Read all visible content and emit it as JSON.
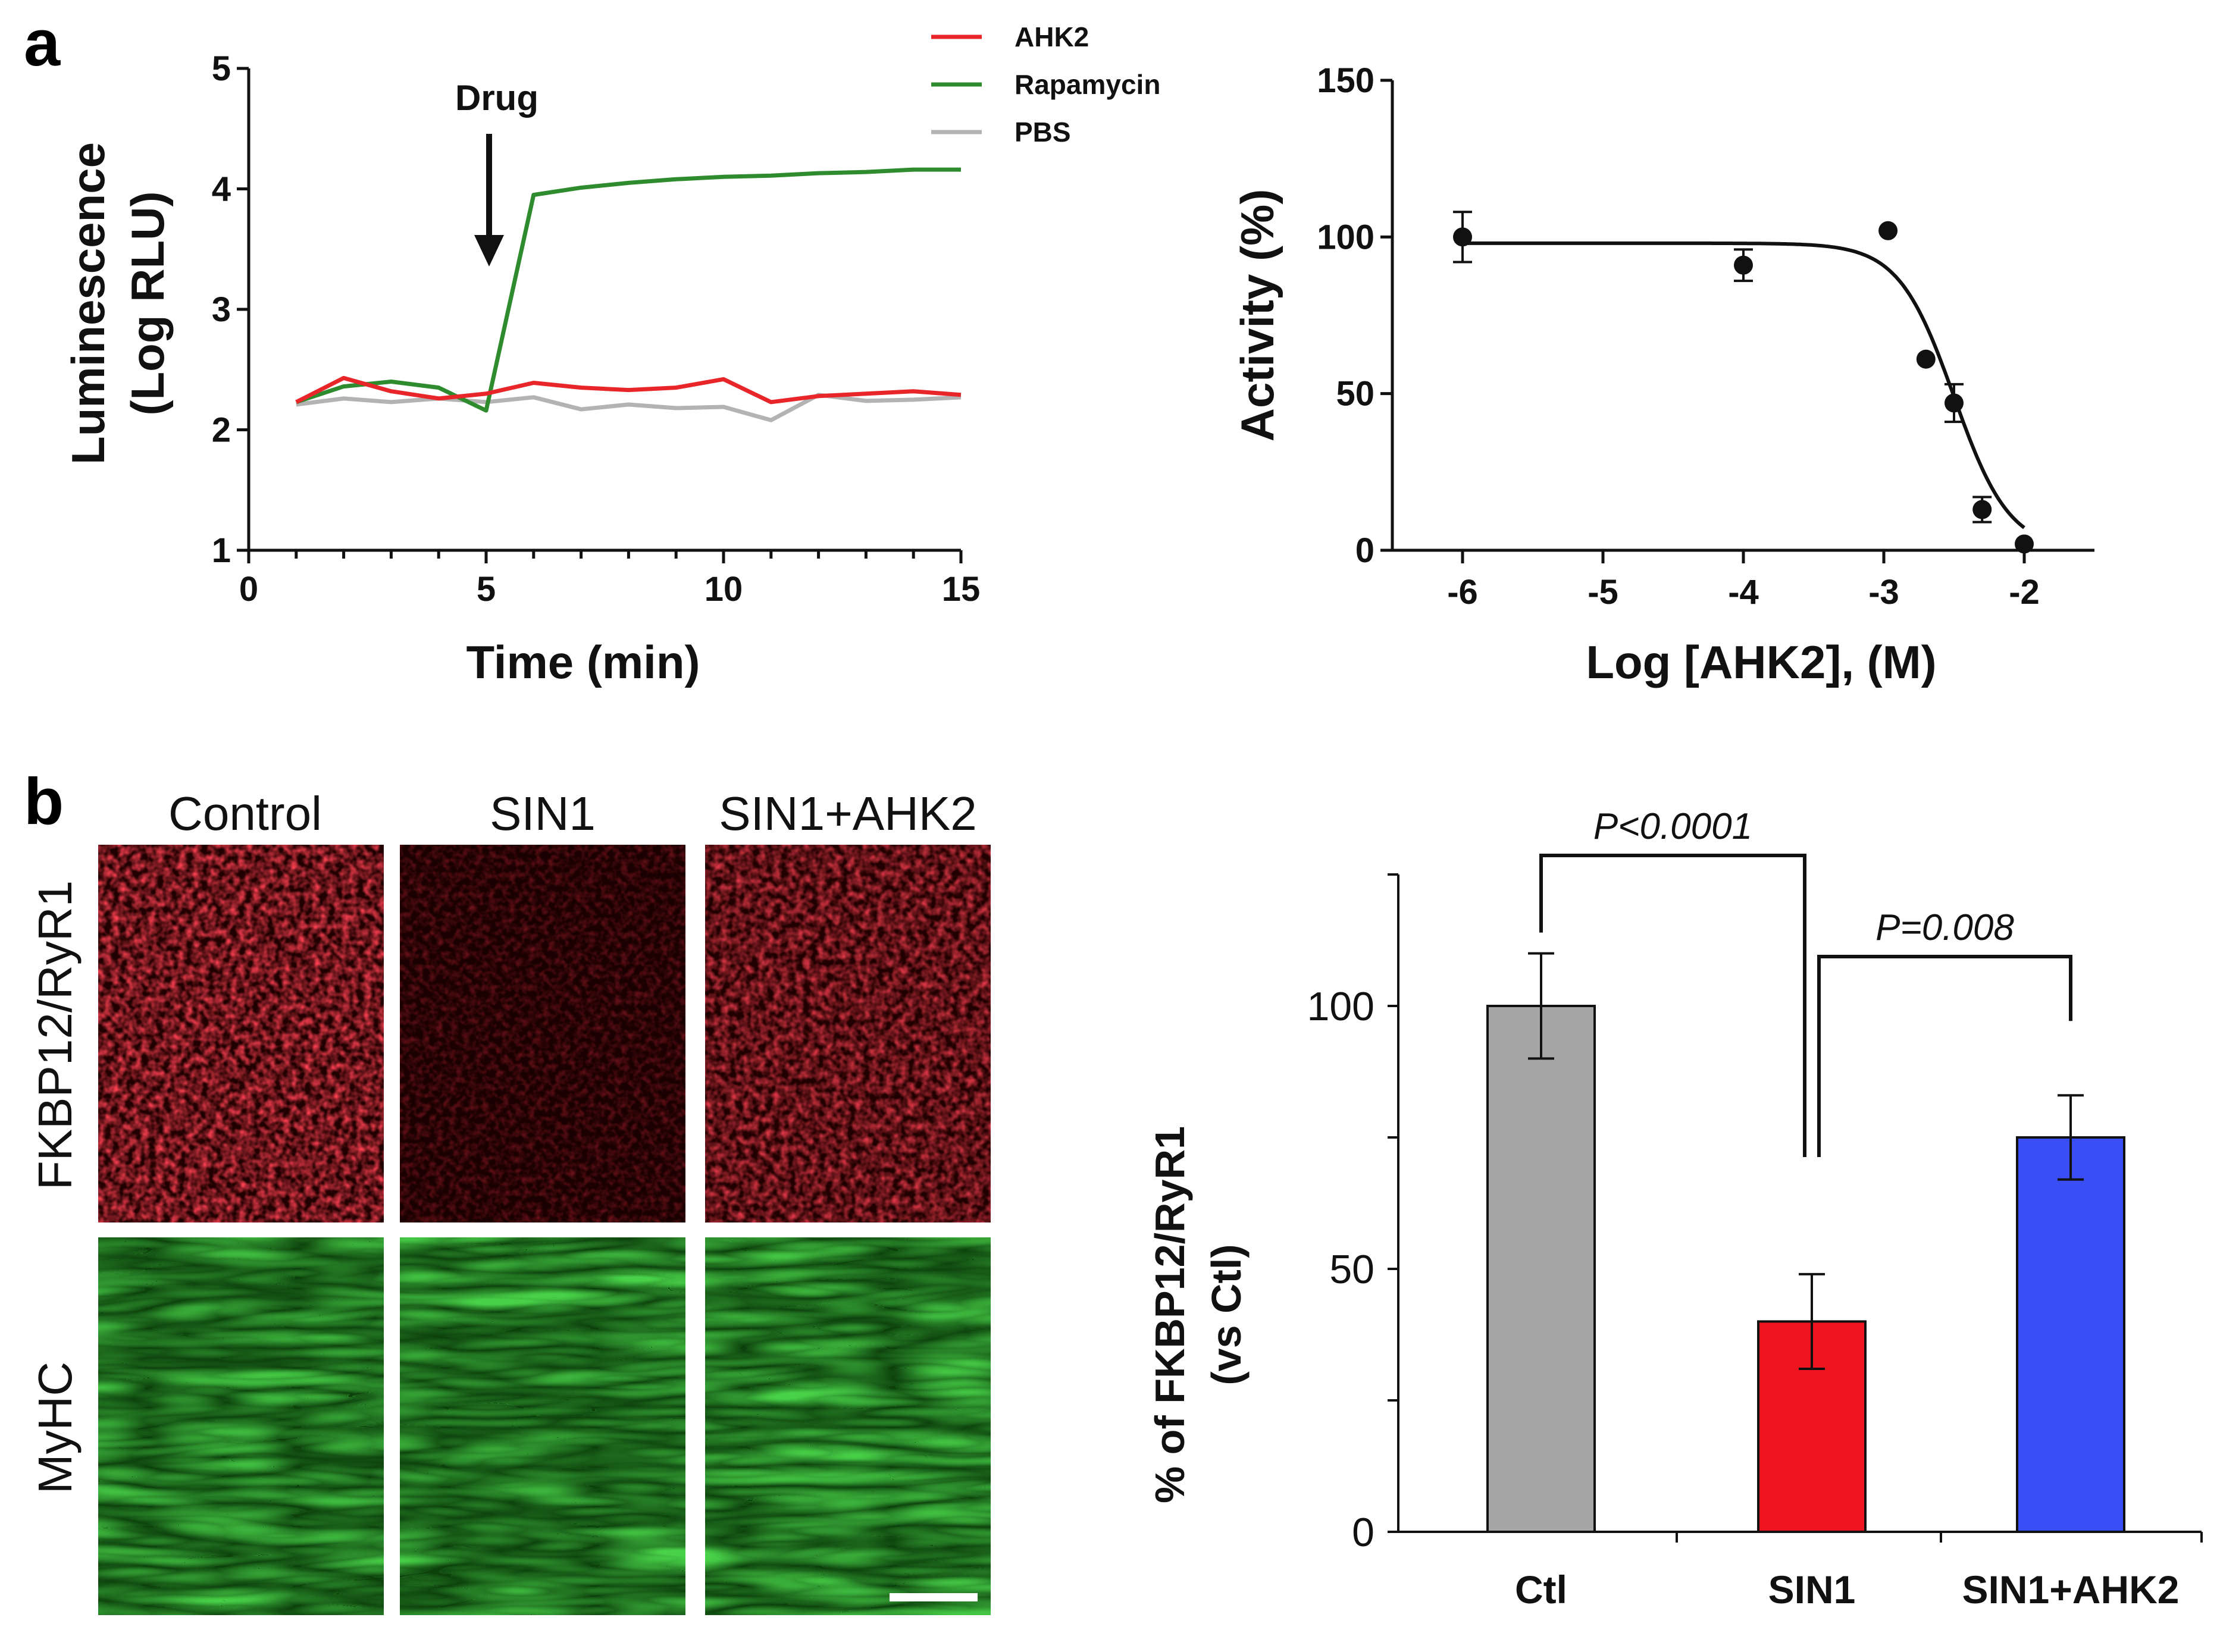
{
  "panels": {
    "a": "a",
    "b": "b"
  },
  "chart_data": [
    {
      "type": "line",
      "xlabel": "Time (min)",
      "ylabel_line1": "Luminescence",
      "ylabel_line2": "(Log RLU)",
      "xlim": [
        0,
        15
      ],
      "ylim": [
        1,
        5
      ],
      "xticks": [
        0,
        5,
        10,
        15
      ],
      "yticks": [
        1,
        2,
        3,
        4,
        5
      ],
      "annotation": "Drug",
      "annotation_x": 5,
      "legend_position": "top-right",
      "x": [
        1,
        2,
        3,
        4,
        5,
        6,
        7,
        8,
        9,
        10,
        11,
        12,
        13,
        14,
        15
      ],
      "series": [
        {
          "name": "AHK2",
          "color": "#e8262a",
          "values": [
            2.23,
            2.43,
            2.32,
            2.26,
            2.3,
            2.39,
            2.35,
            2.33,
            2.35,
            2.42,
            2.23,
            2.28,
            2.3,
            2.32,
            2.29
          ]
        },
        {
          "name": "Rapamycin",
          "color": "#2e8b2e",
          "values": [
            2.23,
            2.36,
            2.4,
            2.35,
            2.16,
            3.95,
            4.01,
            4.05,
            4.08,
            4.1,
            4.11,
            4.13,
            4.14,
            4.16,
            4.16
          ]
        },
        {
          "name": "PBS",
          "color": "#b3b3b3",
          "values": [
            2.21,
            2.26,
            2.23,
            2.26,
            2.23,
            2.27,
            2.17,
            2.21,
            2.18,
            2.19,
            2.08,
            2.29,
            2.24,
            2.25,
            2.27
          ]
        }
      ]
    },
    {
      "type": "scatter",
      "xlabel": "Log [AHK2], (M)",
      "ylabel": "Activity (%)",
      "xlim": [
        -6.5,
        -1.5
      ],
      "ylim": [
        0,
        150
      ],
      "xticks": [
        -6,
        -5,
        -4,
        -3,
        -2
      ],
      "yticks": [
        0,
        50,
        100,
        150
      ],
      "points": [
        {
          "x": -6.0,
          "y": 100,
          "err": 8
        },
        {
          "x": -4.0,
          "y": 91,
          "err": 5
        },
        {
          "x": -2.97,
          "y": 102,
          "err": 0
        },
        {
          "x": -2.7,
          "y": 61,
          "err": 0
        },
        {
          "x": -2.5,
          "y": 47,
          "err": 6
        },
        {
          "x": -2.3,
          "y": 13,
          "err": 4
        },
        {
          "x": -2.0,
          "y": 2,
          "err": 0
        }
      ],
      "fit": {
        "top": 98,
        "bottom": 0,
        "logIC50": -2.5,
        "hill": -2.2
      }
    },
    {
      "type": "bar",
      "ylabel_line1": "% of FKBP12/RyR1",
      "ylabel_line2": "(vs Ctl)",
      "ylim": [
        0,
        125
      ],
      "yticks": [
        0,
        50,
        100
      ],
      "categories": [
        "Ctl",
        "SIN1",
        "SIN1+AHK2"
      ],
      "values": [
        100,
        40,
        75
      ],
      "errors": [
        10,
        9,
        8
      ],
      "colors": [
        "#a6a6a6",
        "#f0141e",
        "#3a4ef5"
      ],
      "comparisons": [
        {
          "from": 0,
          "to": 1,
          "label": "P<0.0001"
        },
        {
          "from": 1,
          "to": 2,
          "label": "P=0.008"
        }
      ]
    }
  ],
  "images": {
    "columns": [
      "Control",
      "SIN1",
      "SIN1+AHK2"
    ],
    "rows": [
      "FKBP12/RyR1",
      "MyHC"
    ]
  }
}
